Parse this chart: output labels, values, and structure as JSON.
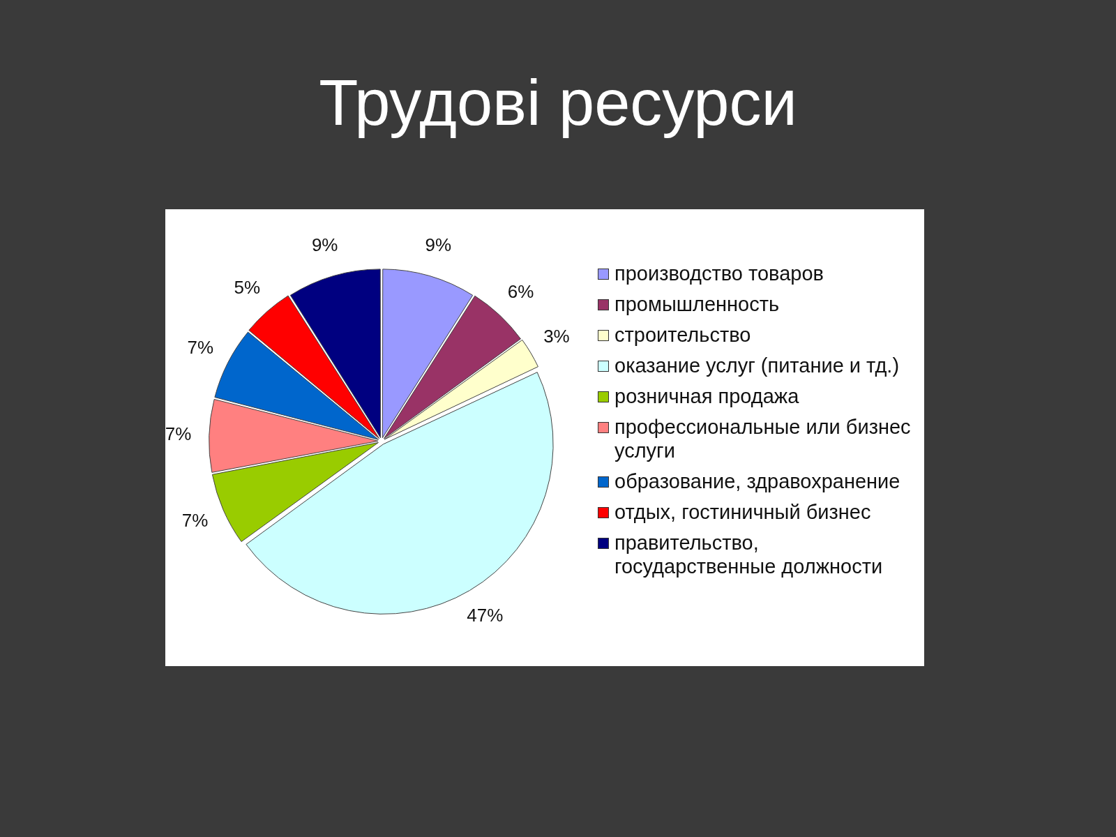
{
  "chart_data": {
    "type": "pie",
    "title": "Трудові ресурси",
    "categories": [
      "производство товаров",
      "промышленность",
      "строительство",
      "оказание услуг (питание и тд.)",
      "розничная продажа",
      "профессиональные или бизнес услуги",
      "образование, здравохранение",
      "отдых, гостиничный бизнес",
      "правительство, государственные должности"
    ],
    "values": [
      9,
      6,
      3,
      47,
      7,
      7,
      7,
      5,
      9
    ],
    "value_labels": [
      "9%",
      "6%",
      "3%",
      "47%",
      "7%",
      "7%",
      "7%",
      "5%",
      "9%"
    ],
    "colors": [
      "#9999ff",
      "#993366",
      "#ffffcc",
      "#ccffff",
      "#99cc00",
      "#ff8080",
      "#0066cc",
      "#ff0000",
      "#000080"
    ],
    "legend": "right"
  }
}
